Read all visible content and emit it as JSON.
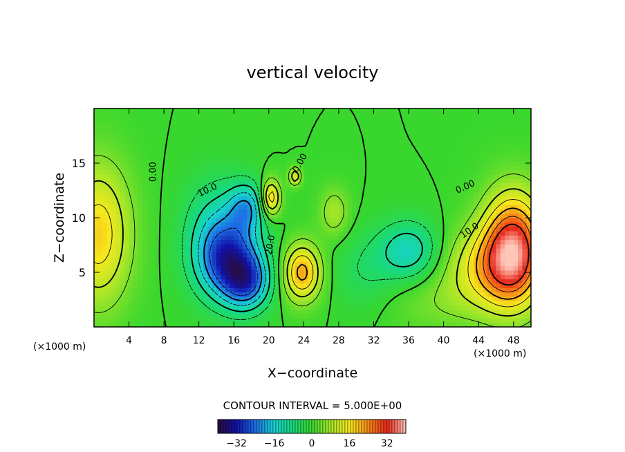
{
  "chart_data": {
    "type": "heatmap",
    "title": "vertical velocity",
    "xlabel": "X−coordinate",
    "ylabel": "Z−coordinate",
    "x_unit_left": "(×1000 m)",
    "x_unit_right": "(×1000 m)",
    "xlim": [
      0,
      50
    ],
    "ylim": [
      0,
      20
    ],
    "x_ticks": [
      4,
      8,
      12,
      16,
      20,
      24,
      28,
      32,
      36,
      40,
      44,
      48
    ],
    "x_tick_labels": [
      "4",
      "8",
      "12",
      "16",
      "20",
      "24",
      "28",
      "32",
      "36",
      "40",
      "44",
      "48"
    ],
    "y_ticks": [
      5,
      10,
      15
    ],
    "y_tick_labels": [
      "5",
      "10",
      "15"
    ],
    "contour_interval_text": "CONTOUR INTERVAL = 5.000E+00",
    "contour_labels": [
      {
        "text": "0.00",
        "x": 6.8,
        "y": 14.2,
        "rotate": -90
      },
      {
        "text": "10.0",
        "x": 13.0,
        "y": 12.5,
        "rotate": -25
      },
      {
        "text": "20.0",
        "x": 20.2,
        "y": 7.5,
        "rotate": -80
      },
      {
        "text": "0.00",
        "x": 23.6,
        "y": 15.0,
        "rotate": -60
      },
      {
        "text": "0.00",
        "x": 42.5,
        "y": 12.8,
        "rotate": -25
      },
      {
        "text": "10.0",
        "x": 43.0,
        "y": 8.8,
        "rotate": -35
      }
    ],
    "colorbar": {
      "range": [
        -40,
        40
      ],
      "ticks": [
        -32,
        -16,
        0,
        16,
        32
      ],
      "tick_labels": [
        "−32",
        "−16",
        "0",
        "16",
        "32"
      ],
      "stops": [
        "#2a0d3a",
        "#1111a8",
        "#1e6ee6",
        "#17d2d2",
        "#18d97a",
        "#39d72d",
        "#a7e629",
        "#f6e91d",
        "#f78c18",
        "#e7261a",
        "#ffc6b8"
      ]
    },
    "features": [
      {
        "x": 0.5,
        "y": 8.5,
        "value": 18,
        "sx": 2.6,
        "sy": 4.5
      },
      {
        "x": 48.0,
        "y": 7.2,
        "value": 33,
        "sx": 2.4,
        "sy": 3.5
      },
      {
        "x": 45.0,
        "y": 5.5,
        "value": 14,
        "sx": 3.5,
        "sy": 2.5
      },
      {
        "x": 15.5,
        "y": 6.0,
        "value": -28,
        "sx": 2.6,
        "sy": 2.5
      },
      {
        "x": 17.5,
        "y": 4.0,
        "value": -18,
        "sx": 1.8,
        "sy": 1.7
      },
      {
        "x": 17.5,
        "y": 11.0,
        "value": -16,
        "sx": 1.5,
        "sy": 1.6
      },
      {
        "x": 14.0,
        "y": 9.5,
        "value": -10,
        "sx": 2.5,
        "sy": 3.0
      },
      {
        "x": 20.2,
        "y": 11.8,
        "value": 20,
        "sx": 0.8,
        "sy": 1.2
      },
      {
        "x": 23.0,
        "y": 13.8,
        "value": 14,
        "sx": 0.5,
        "sy": 0.6
      },
      {
        "x": 23.8,
        "y": 5.0,
        "value": 22,
        "sx": 1.5,
        "sy": 1.8
      },
      {
        "x": 27.5,
        "y": 10.5,
        "value": 8,
        "sx": 1.2,
        "sy": 1.6
      },
      {
        "x": 36.0,
        "y": 7.0,
        "value": -14,
        "sx": 2.4,
        "sy": 1.9
      },
      {
        "x": 31.0,
        "y": 5.0,
        "value": -5,
        "sx": 2.5,
        "sy": 2.5
      },
      {
        "x": 40.0,
        "y": 2.2,
        "value": 4,
        "sx": 5.0,
        "sy": 2.0
      }
    ]
  }
}
